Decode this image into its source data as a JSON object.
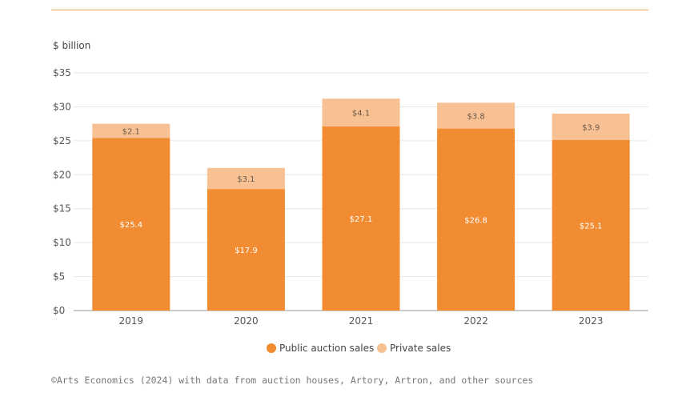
{
  "chart_data": {
    "type": "bar",
    "stacked": true,
    "y_unit": "$ billion",
    "categories": [
      "2019",
      "2020",
      "2021",
      "2022",
      "2023"
    ],
    "ylim": [
      0,
      35
    ],
    "yticks": [
      0,
      5,
      10,
      15,
      20,
      25,
      30,
      35
    ],
    "ytick_labels": [
      "$0",
      "$5",
      "$10",
      "$15",
      "$20",
      "$25",
      "$30",
      "$35"
    ],
    "grid": true,
    "legend_position": "bottom-center",
    "series": [
      {
        "name": "Public auction sales",
        "color": "#f28c33",
        "label_color": "#ffffff",
        "values": [
          25.4,
          17.9,
          27.1,
          26.8,
          25.1
        ],
        "labels": [
          "$25.4",
          "$17.9",
          "$27.1",
          "$26.8",
          "$25.1"
        ]
      },
      {
        "name": "Private sales",
        "color": "#f8c193",
        "label_color": "#6b5a4a",
        "values": [
          2.1,
          3.1,
          4.1,
          3.8,
          3.9
        ],
        "labels": [
          "$2.1",
          "$3.1",
          "$4.1",
          "$3.8",
          "$3.9"
        ]
      }
    ]
  },
  "source_note": "©Arts Economics (2024) with data from auction houses, Artory, Artron, and other sources"
}
